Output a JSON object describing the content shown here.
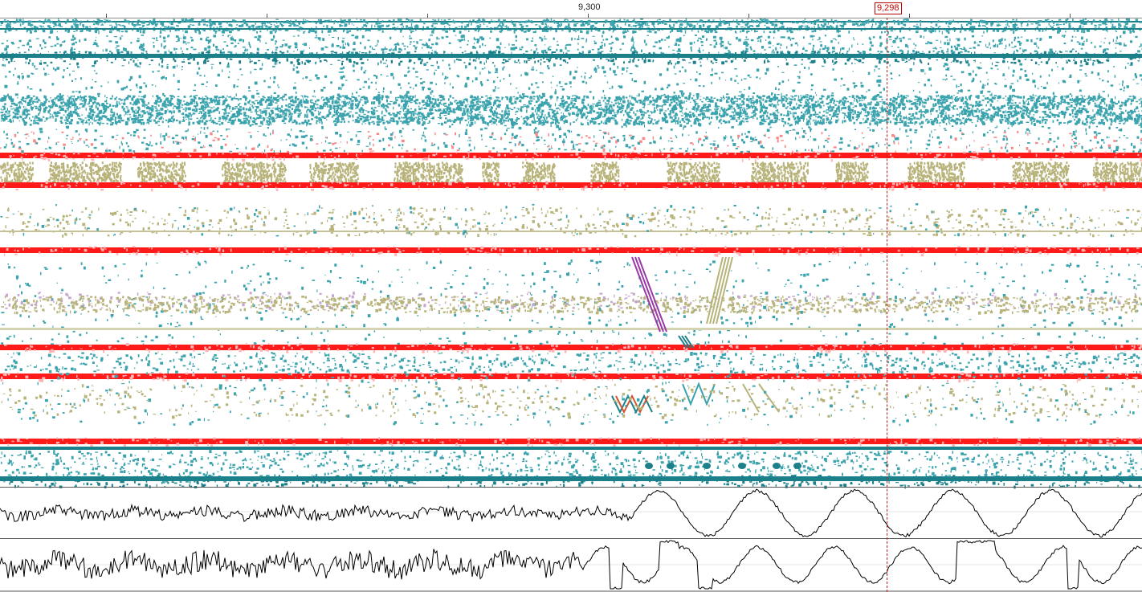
{
  "ruler": {
    "center_label": "9,300",
    "cursor_label": "9,298"
  },
  "colors": {
    "teal": "#3aa3ad",
    "teal_dark": "#1b8089",
    "red": "#ff1a1a",
    "olive": "#b8b37a",
    "purple": "#9a3aa8",
    "pink": "#f48a8a",
    "trace": "#000000",
    "cursor": "#c81e1e"
  },
  "track_types": [
    "teal-band",
    "teal-band",
    "teal-cloud",
    "red-line",
    "olive-blocks",
    "red-line",
    "sparse-olive",
    "red-line",
    "diagonal-artifacts",
    "red-line",
    "red-line",
    "red-line",
    "teal-dots",
    "waveform",
    "waveform"
  ]
}
